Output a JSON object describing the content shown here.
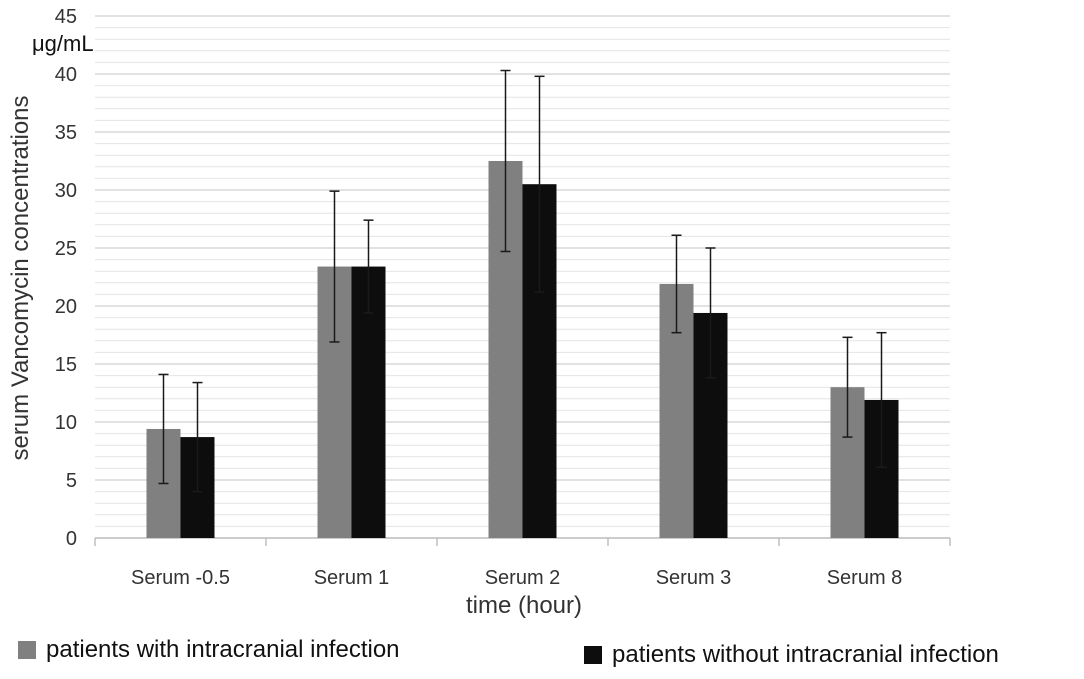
{
  "chart_data": {
    "type": "bar",
    "title": "",
    "ylabel": "serum Vancomycin concentrations",
    "yunit": "μg/mL",
    "xlabel": "time (hour)",
    "ylim": [
      0,
      45
    ],
    "ytick_step": 5,
    "ytick_labels": [
      "0",
      "5",
      "10",
      "15",
      "20",
      "25",
      "30",
      "35",
      "40",
      "45"
    ],
    "grid": true,
    "legend_position": "bottom",
    "categories": [
      "Serum -0.5",
      "Serum 1",
      "Serum 2",
      "Serum 3",
      "Serum 8"
    ],
    "series": [
      {
        "name": "patients with intracranial infection",
        "color": "#808080",
        "values": [
          9.4,
          23.4,
          32.5,
          21.9,
          13.0
        ],
        "errors": [
          4.7,
          6.5,
          7.8,
          4.2,
          4.3
        ]
      },
      {
        "name": "patients without intracranial infection",
        "color": "#0d0d0d",
        "values": [
          8.7,
          23.4,
          30.5,
          19.4,
          11.9
        ],
        "errors": [
          4.7,
          4.0,
          9.3,
          5.6,
          5.8
        ]
      }
    ]
  },
  "legend": {
    "item1_label": "patients with intracranial infection",
    "item2_label": "patients without intracranial infection"
  }
}
